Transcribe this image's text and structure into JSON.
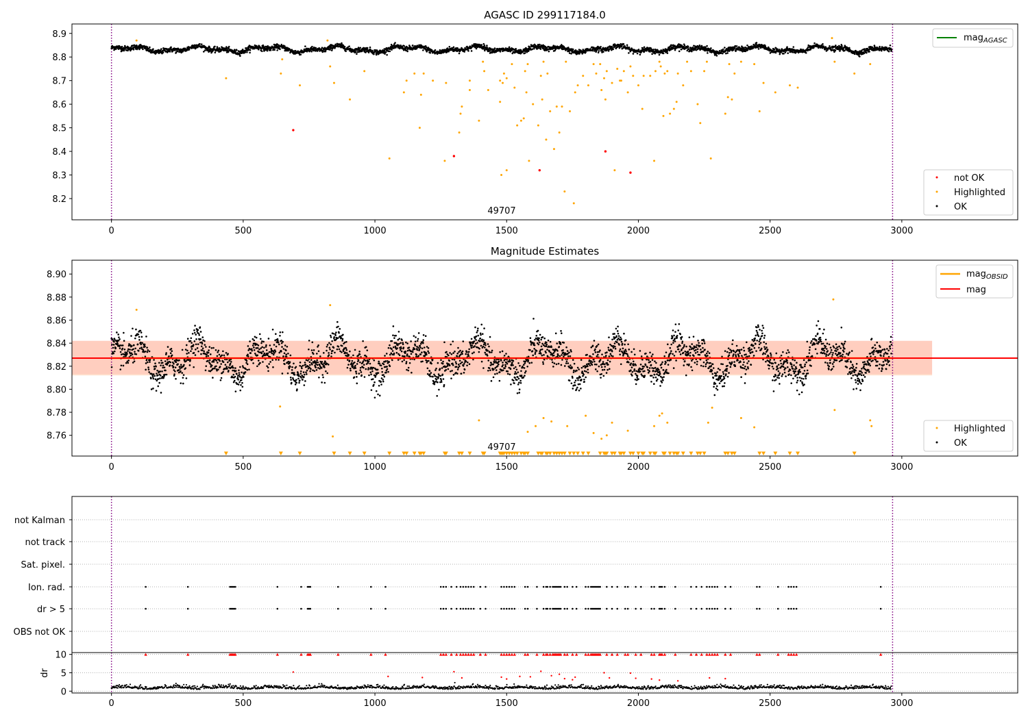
{
  "figure": {
    "panel1": {
      "title": "AGASC ID 299117184.0",
      "obsid_label": "49707",
      "yticks": [
        "8.2",
        "8.3",
        "8.4",
        "8.5",
        "8.6",
        "8.7",
        "8.8",
        "8.9"
      ],
      "xticks": [
        "0",
        "500",
        "1000",
        "1500",
        "2000",
        "2500",
        "3000"
      ],
      "legend_top": {
        "line_label": "mag",
        "line_sub": "AGASC",
        "line_color": "#008000"
      },
      "legend_bottom": [
        {
          "label": "not OK",
          "color": "#ff0000"
        },
        {
          "label": "Highlighted",
          "color": "#ffa500"
        },
        {
          "label": "OK",
          "color": "#000000"
        }
      ]
    },
    "panel2": {
      "title": "Magnitude Estimates",
      "obsid_label": "49707",
      "yticks": [
        "8.76",
        "8.78",
        "8.80",
        "8.82",
        "8.84",
        "8.86",
        "8.88",
        "8.90"
      ],
      "xticks": [
        "0",
        "500",
        "1000",
        "1500",
        "2000",
        "2500",
        "3000"
      ],
      "legend_top": [
        {
          "label": "mag",
          "sub": "OBSID",
          "color": "#ffa500"
        },
        {
          "label": "mag",
          "sub": "",
          "color": "#ff0000"
        }
      ],
      "legend_bottom": [
        {
          "label": "Highlighted",
          "color": "#ffa500"
        },
        {
          "label": "OK",
          "color": "#000000"
        }
      ]
    },
    "panel3": {
      "flag_labels": [
        "not Kalman",
        "not track",
        "Sat. pixel.",
        "Ion. rad.",
        "dr > 5",
        "OBS not OK"
      ],
      "dr_label": "dr",
      "dr_ticks": [
        "0",
        "5",
        "10"
      ],
      "xticks": [
        "0",
        "500",
        "1000",
        "1500",
        "2000",
        "2500",
        "3000"
      ]
    }
  },
  "chart_data": [
    {
      "type": "scatter",
      "title": "AGASC ID 299117184.0",
      "xlim": [
        -150,
        3440
      ],
      "ylim": [
        8.11,
        8.94
      ],
      "obs_bounds": [
        0,
        2965
      ],
      "ok_series": {
        "name": "OK",
        "baseline": 8.833,
        "scatter": 0.012,
        "n": 2960
      },
      "highlighted_points": [
        [
          95,
          8.87
        ],
        [
          435,
          8.71
        ],
        [
          643,
          8.73
        ],
        [
          648,
          8.79
        ],
        [
          715,
          8.68
        ],
        [
          820,
          8.87
        ],
        [
          830,
          8.76
        ],
        [
          845,
          8.69
        ],
        [
          905,
          8.62
        ],
        [
          960,
          8.74
        ],
        [
          1055,
          8.37
        ],
        [
          1110,
          8.65
        ],
        [
          1120,
          8.7
        ],
        [
          1150,
          8.73
        ],
        [
          1170,
          8.5
        ],
        [
          1175,
          8.64
        ],
        [
          1185,
          8.73
        ],
        [
          1220,
          8.7
        ],
        [
          1265,
          8.36
        ],
        [
          1270,
          8.69
        ],
        [
          1320,
          8.48
        ],
        [
          1325,
          8.56
        ],
        [
          1330,
          8.59
        ],
        [
          1360,
          8.66
        ],
        [
          1360,
          8.7
        ],
        [
          1395,
          8.53
        ],
        [
          1410,
          8.78
        ],
        [
          1415,
          8.74
        ],
        [
          1430,
          8.66
        ],
        [
          1475,
          8.61
        ],
        [
          1475,
          8.7
        ],
        [
          1480,
          8.3
        ],
        [
          1485,
          8.69
        ],
        [
          1490,
          8.73
        ],
        [
          1500,
          8.32
        ],
        [
          1500,
          8.71
        ],
        [
          1520,
          8.77
        ],
        [
          1530,
          8.67
        ],
        [
          1540,
          8.51
        ],
        [
          1555,
          8.53
        ],
        [
          1565,
          8.54
        ],
        [
          1570,
          8.74
        ],
        [
          1575,
          8.65
        ],
        [
          1580,
          8.77
        ],
        [
          1585,
          8.36
        ],
        [
          1600,
          8.6
        ],
        [
          1620,
          8.51
        ],
        [
          1630,
          8.72
        ],
        [
          1635,
          8.62
        ],
        [
          1640,
          8.78
        ],
        [
          1650,
          8.45
        ],
        [
          1655,
          8.73
        ],
        [
          1665,
          8.57
        ],
        [
          1680,
          8.41
        ],
        [
          1690,
          8.59
        ],
        [
          1700,
          8.48
        ],
        [
          1710,
          8.59
        ],
        [
          1720,
          8.23
        ],
        [
          1725,
          8.78
        ],
        [
          1740,
          8.57
        ],
        [
          1755,
          8.18
        ],
        [
          1760,
          8.65
        ],
        [
          1770,
          8.68
        ],
        [
          1790,
          8.72
        ],
        [
          1810,
          8.68
        ],
        [
          1830,
          8.77
        ],
        [
          1840,
          8.73
        ],
        [
          1855,
          8.77
        ],
        [
          1860,
          8.66
        ],
        [
          1870,
          8.71
        ],
        [
          1875,
          8.62
        ],
        [
          1880,
          8.74
        ],
        [
          1900,
          8.69
        ],
        [
          1910,
          8.32
        ],
        [
          1920,
          8.75
        ],
        [
          1930,
          8.7
        ],
        [
          1935,
          8.7
        ],
        [
          1945,
          8.74
        ],
        [
          1960,
          8.65
        ],
        [
          1970,
          8.76
        ],
        [
          1980,
          8.72
        ],
        [
          2000,
          8.68
        ],
        [
          2015,
          8.58
        ],
        [
          2020,
          8.72
        ],
        [
          2045,
          8.72
        ],
        [
          2060,
          8.36
        ],
        [
          2065,
          8.74
        ],
        [
          2080,
          8.78
        ],
        [
          2085,
          8.76
        ],
        [
          2095,
          8.55
        ],
        [
          2100,
          8.73
        ],
        [
          2110,
          8.74
        ],
        [
          2120,
          8.56
        ],
        [
          2135,
          8.58
        ],
        [
          2145,
          8.61
        ],
        [
          2150,
          8.73
        ],
        [
          2170,
          8.68
        ],
        [
          2185,
          8.78
        ],
        [
          2200,
          8.74
        ],
        [
          2225,
          8.6
        ],
        [
          2235,
          8.52
        ],
        [
          2250,
          8.74
        ],
        [
          2260,
          8.78
        ],
        [
          2275,
          8.37
        ],
        [
          2330,
          8.56
        ],
        [
          2340,
          8.63
        ],
        [
          2345,
          8.77
        ],
        [
          2355,
          8.62
        ],
        [
          2365,
          8.73
        ],
        [
          2390,
          8.78
        ],
        [
          2440,
          8.77
        ],
        [
          2460,
          8.57
        ],
        [
          2475,
          8.69
        ],
        [
          2520,
          8.65
        ],
        [
          2575,
          8.68
        ],
        [
          2605,
          8.67
        ],
        [
          2735,
          8.88
        ],
        [
          2745,
          8.78
        ],
        [
          2820,
          8.73
        ],
        [
          2880,
          8.77
        ]
      ],
      "not_ok_points": [
        [
          690,
          8.49
        ],
        [
          1300,
          8.38
        ],
        [
          1625,
          8.32
        ],
        [
          1875,
          8.4
        ],
        [
          1970,
          8.31
        ]
      ]
    },
    {
      "type": "scatter",
      "title": "Magnitude Estimates",
      "xlim": [
        -150,
        3440
      ],
      "ylim": [
        8.742,
        8.912
      ],
      "mean_mag": 8.827,
      "band_obsid": [
        8.812,
        8.842
      ],
      "band_mag": [
        8.813,
        8.842
      ],
      "band_x": [
        -150,
        3115
      ],
      "ok_series": {
        "name": "OK",
        "baseline": 8.826,
        "scatter": 0.012,
        "n": 2960
      },
      "highlighted_points": [
        [
          95,
          8.869
        ],
        [
          640,
          8.785
        ],
        [
          830,
          8.873
        ],
        [
          840,
          8.759
        ],
        [
          1395,
          8.773
        ],
        [
          1580,
          8.763
        ],
        [
          1610,
          8.768
        ],
        [
          1640,
          8.775
        ],
        [
          1670,
          8.772
        ],
        [
          1730,
          8.768
        ],
        [
          1800,
          8.777
        ],
        [
          1830,
          8.762
        ],
        [
          1860,
          8.757
        ],
        [
          1880,
          8.76
        ],
        [
          1900,
          8.771
        ],
        [
          1960,
          8.764
        ],
        [
          2060,
          8.768
        ],
        [
          2080,
          8.777
        ],
        [
          2090,
          8.779
        ],
        [
          2110,
          8.771
        ],
        [
          2265,
          8.771
        ],
        [
          2280,
          8.784
        ],
        [
          2390,
          8.775
        ],
        [
          2440,
          8.767
        ],
        [
          2740,
          8.878
        ],
        [
          2745,
          8.782
        ],
        [
          2880,
          8.773
        ],
        [
          2885,
          8.768
        ]
      ],
      "offscale_x": [
        435,
        643,
        715,
        845,
        905,
        960,
        1055,
        1110,
        1120,
        1150,
        1170,
        1175,
        1185,
        1265,
        1270,
        1320,
        1330,
        1360,
        1410,
        1415,
        1475,
        1480,
        1485,
        1490,
        1500,
        1510,
        1520,
        1530,
        1540,
        1555,
        1565,
        1570,
        1580,
        1620,
        1630,
        1635,
        1650,
        1655,
        1665,
        1680,
        1690,
        1700,
        1710,
        1720,
        1740,
        1755,
        1770,
        1790,
        1810,
        1855,
        1870,
        1875,
        1880,
        1900,
        1910,
        1930,
        1935,
        1945,
        1970,
        1980,
        2000,
        2015,
        2020,
        2045,
        2060,
        2065,
        2095,
        2100,
        2120,
        2135,
        2145,
        2150,
        2170,
        2200,
        2225,
        2235,
        2250,
        2330,
        2340,
        2355,
        2365,
        2460,
        2475,
        2520,
        2575,
        2605,
        2820
      ]
    },
    {
      "type": "scatter",
      "xlim": [
        -150,
        3440
      ],
      "flag_rows": [
        "not Kalman",
        "not track",
        "Sat. pixel.",
        "Ion. rad.",
        "dr > 5",
        "OBS not OK"
      ],
      "flag_x": [
        130,
        290,
        450,
        455,
        460,
        465,
        470,
        630,
        720,
        745,
        750,
        755,
        860,
        985,
        1040,
        1250,
        1260,
        1270,
        1290,
        1310,
        1325,
        1335,
        1345,
        1355,
        1365,
        1375,
        1400,
        1420,
        1480,
        1490,
        1500,
        1510,
        1520,
        1530,
        1570,
        1580,
        1615,
        1640,
        1650,
        1655,
        1665,
        1675,
        1680,
        1685,
        1690,
        1695,
        1700,
        1705,
        1720,
        1730,
        1750,
        1765,
        1800,
        1810,
        1820,
        1825,
        1830,
        1835,
        1840,
        1845,
        1850,
        1855,
        1880,
        1900,
        1920,
        1950,
        1960,
        1990,
        2010,
        2050,
        2060,
        2080,
        2085,
        2090,
        2100,
        2140,
        2200,
        2220,
        2240,
        2260,
        2270,
        2280,
        2290,
        2300,
        2330,
        2350,
        2450,
        2460,
        2530,
        2570,
        2580,
        2590,
        2600,
        2920
      ],
      "dr": {
        "ylim": [
          -0.5,
          10.5
        ],
        "baseline": 0.7,
        "scatter": 0.5,
        "n": 1500,
        "elevated_points": [
          [
            690,
            5.2
          ],
          [
            1050,
            4.0
          ],
          [
            1180,
            3.7
          ],
          [
            1300,
            5.3
          ],
          [
            1330,
            3.6
          ],
          [
            1480,
            3.8
          ],
          [
            1500,
            3.3
          ],
          [
            1550,
            4.0
          ],
          [
            1590,
            3.9
          ],
          [
            1630,
            5.4
          ],
          [
            1670,
            4.2
          ],
          [
            1700,
            4.6
          ],
          [
            1720,
            3.4
          ],
          [
            1750,
            3.1
          ],
          [
            1760,
            3.8
          ],
          [
            1870,
            5.0
          ],
          [
            1890,
            3.6
          ],
          [
            1970,
            4.9
          ],
          [
            1990,
            3.5
          ],
          [
            2050,
            3.3
          ],
          [
            2080,
            3.0
          ],
          [
            2150,
            2.8
          ],
          [
            2270,
            3.6
          ],
          [
            2330,
            3.4
          ]
        ]
      }
    }
  ]
}
